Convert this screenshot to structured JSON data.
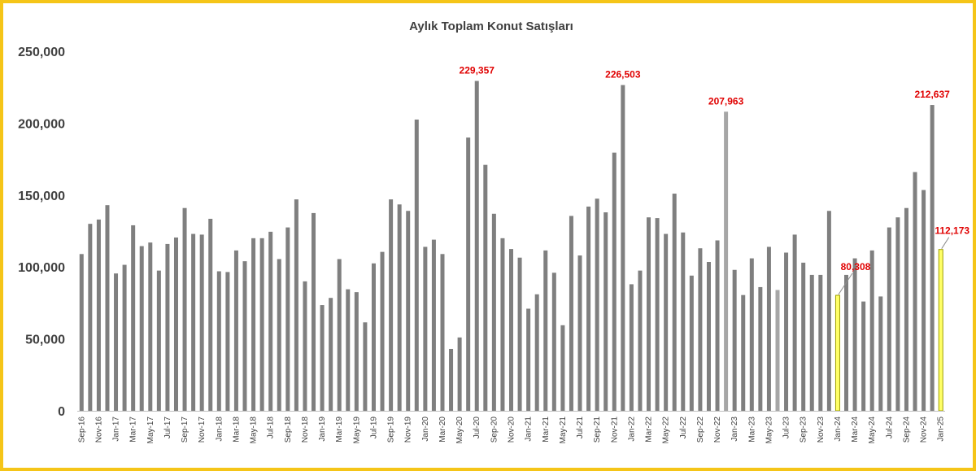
{
  "chart_data": {
    "type": "bar",
    "title": "Aylık Toplam Konut Satışları",
    "xlabel": "",
    "ylabel": "",
    "ylim": [
      0,
      250000
    ],
    "yticks": [
      0,
      50000,
      100000,
      150000,
      200000,
      250000
    ],
    "ytick_labels": [
      "0",
      "50,000",
      "100,000",
      "150,000",
      "200,000",
      "250,000"
    ],
    "grid": false,
    "legend": "none",
    "colors": {
      "bar": "#7f7f7f",
      "bar_light": "#a6a6a6",
      "bar_yellow": "#ffff66",
      "bar_yellow_edge": "#a0a000",
      "label": "#e00000",
      "frame": "#f5c518"
    },
    "categories": [
      "Sep-16",
      "Oct-16",
      "Nov-16",
      "Dec-16",
      "Jan-17",
      "Feb-17",
      "Mar-17",
      "Apr-17",
      "May-17",
      "Jun-17",
      "Jul-17",
      "Aug-17",
      "Sep-17",
      "Oct-17",
      "Nov-17",
      "Dec-17",
      "Jan-18",
      "Feb-18",
      "Mar-18",
      "Apr-18",
      "May-18",
      "Jun-18",
      "Jul-18",
      "Aug-18",
      "Sep-18",
      "Oct-18",
      "Nov-18",
      "Dec-18",
      "Jan-19",
      "Feb-19",
      "Mar-19",
      "Apr-19",
      "May-19",
      "Jun-19",
      "Jul-19",
      "Aug-19",
      "Sep-19",
      "Oct-19",
      "Nov-19",
      "Dec-19",
      "Jan-20",
      "Feb-20",
      "Mar-20",
      "Apr-20",
      "May-20",
      "Jun-20",
      "Jul-20",
      "Aug-20",
      "Sep-20",
      "Oct-20",
      "Nov-20",
      "Dec-20",
      "Jan-21",
      "Feb-21",
      "Mar-21",
      "Apr-21",
      "May-21",
      "Jun-21",
      "Jul-21",
      "Aug-21",
      "Sep-21",
      "Oct-21",
      "Nov-21",
      "Dec-21",
      "Jan-22",
      "Feb-22",
      "Mar-22",
      "Apr-22",
      "May-22",
      "Jun-22",
      "Jul-22",
      "Aug-22",
      "Sep-22",
      "Oct-22",
      "Nov-22",
      "Dec-22",
      "Jan-23",
      "Feb-23",
      "Mar-23",
      "Apr-23",
      "May-23",
      "Jun-23",
      "Jul-23",
      "Aug-23",
      "Sep-23",
      "Oct-23",
      "Nov-23",
      "Dec-23",
      "Jan-24",
      "Feb-24",
      "Mar-24",
      "Apr-24",
      "May-24",
      "Jun-24",
      "Jul-24",
      "Aug-24",
      "Sep-24",
      "Oct-24",
      "Nov-24",
      "Dec-24",
      "Jan-25"
    ],
    "tick_labels": [
      "Sep-16",
      "",
      "Nov-16",
      "",
      "Jan-17",
      "",
      "Mar-17",
      "",
      "May-17",
      "",
      "Jul-17",
      "",
      "Sep-17",
      "",
      "Nov-17",
      "",
      "Jan-18",
      "",
      "Mar-18",
      "",
      "May-18",
      "",
      "Jul-18",
      "",
      "Sep-18",
      "",
      "Nov-18",
      "",
      "Jan-19",
      "",
      "Mar-19",
      "",
      "May-19",
      "",
      "Jul-19",
      "",
      "Sep-19",
      "",
      "Nov-19",
      "",
      "Jan-20",
      "",
      "Mar-20",
      "",
      "May-20",
      "",
      "Jul-20",
      "",
      "Sep-20",
      "",
      "Nov-20",
      "",
      "Jan-21",
      "",
      "Mar-21",
      "",
      "May-21",
      "",
      "Jul-21",
      "",
      "Sep-21",
      "",
      "Nov-21",
      "",
      "Jan-22",
      "",
      "Mar-22",
      "",
      "May-22",
      "",
      "Jul-22",
      "",
      "Sep-22",
      "",
      "Nov-22",
      "",
      "Jan-23",
      "",
      "Mar-23",
      "",
      "May-23",
      "",
      "Jul-23",
      "",
      "Sep-23",
      "",
      "Nov-23",
      "",
      "Jan-24",
      "",
      "Mar-24",
      "",
      "May-24",
      "",
      "Jul-24",
      "",
      "Sep-24",
      "",
      "Nov-24",
      "",
      "Jan-25"
    ],
    "values": [
      109000,
      130000,
      133000,
      143000,
      95500,
      101500,
      129000,
      114500,
      117000,
      97500,
      116000,
      120500,
      141000,
      123000,
      122500,
      133500,
      97000,
      96500,
      111500,
      104000,
      120000,
      120000,
      124500,
      105500,
      127500,
      147000,
      90000,
      137500,
      73500,
      78500,
      105500,
      84500,
      82500,
      61500,
      102500,
      110500,
      147000,
      143500,
      139000,
      202500,
      114000,
      119000,
      109000,
      43000,
      51000,
      190000,
      229357,
      171000,
      137000,
      120000,
      112500,
      106500,
      71000,
      81000,
      111500,
      96000,
      59500,
      135500,
      108000,
      142000,
      147500,
      138000,
      179500,
      226503,
      88000,
      97500,
      134500,
      134000,
      123000,
      151000,
      124000,
      94000,
      113000,
      103500,
      118500,
      207963,
      98000,
      80500,
      106000,
      86000,
      114000,
      84000,
      110000,
      122500,
      103000,
      94500,
      94500,
      139000,
      80308,
      94500,
      106000,
      76000,
      111500,
      79500,
      127500,
      134500,
      141000,
      166000,
      153500,
      212637,
      112173
    ],
    "bar_styles": [
      "gray",
      "gray",
      "gray",
      "gray",
      "gray",
      "gray",
      "gray",
      "gray",
      "gray",
      "gray",
      "gray",
      "gray",
      "gray",
      "gray",
      "gray",
      "gray",
      "gray",
      "gray",
      "gray",
      "gray",
      "gray",
      "gray",
      "gray",
      "gray",
      "gray",
      "gray",
      "gray",
      "gray",
      "gray",
      "gray",
      "gray",
      "gray",
      "gray",
      "gray",
      "gray",
      "gray",
      "gray",
      "gray",
      "gray",
      "gray",
      "gray",
      "gray",
      "gray",
      "gray",
      "gray",
      "gray",
      "gray",
      "gray",
      "gray",
      "gray",
      "gray",
      "gray",
      "gray",
      "gray",
      "gray",
      "gray",
      "gray",
      "gray",
      "gray",
      "gray",
      "gray",
      "gray",
      "gray",
      "gray",
      "gray",
      "gray",
      "gray",
      "gray",
      "gray",
      "gray",
      "gray",
      "gray",
      "gray",
      "gray",
      "gray",
      "light",
      "gray",
      "gray",
      "gray",
      "gray",
      "gray",
      "light",
      "gray",
      "gray",
      "gray",
      "gray",
      "gray",
      "gray",
      "yellow",
      "gray",
      "gray",
      "gray",
      "gray",
      "gray",
      "gray",
      "gray",
      "gray",
      "gray",
      "gray",
      "gray",
      "yellow"
    ],
    "annotations": [
      {
        "index": 46,
        "text": "229,357"
      },
      {
        "index": 63,
        "text": "226,503"
      },
      {
        "index": 75,
        "text": "207,963"
      },
      {
        "index": 88,
        "text": "80,308"
      },
      {
        "index": 99,
        "text": "212,637"
      },
      {
        "index": 100,
        "text": "112,173"
      }
    ]
  }
}
